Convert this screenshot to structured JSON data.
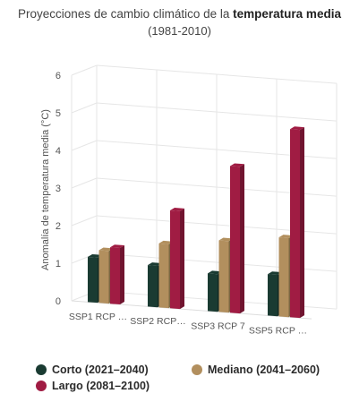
{
  "title_prefix": "Proyecciones de cambio climático de la ",
  "title_bold": "temperatura media",
  "subtitle": "(1981-2010)",
  "chart_data": {
    "type": "bar",
    "ylabel": "Anomalía de temperatura media (°C)",
    "ylim": [
      0,
      6
    ],
    "yticks": [
      "0",
      "1",
      "2",
      "3",
      "4",
      "5",
      "6"
    ],
    "categories": [
      "SSP1 RCP …",
      "SSP2 RCP…",
      "SSP3 RCP 7",
      "SSP5 RCP …"
    ],
    "series": [
      {
        "name": "Corto (2021–2040)",
        "color": "#1a3b32",
        "values": [
          1.2,
          1.1,
          1.0,
          1.1
        ]
      },
      {
        "name": "Mediano (2041–2060)",
        "color": "#b28f5e",
        "values": [
          1.4,
          1.7,
          1.9,
          2.1
        ]
      },
      {
        "name": "Largo (2081–2100)",
        "color": "#a01c43",
        "values": [
          1.5,
          2.6,
          3.9,
          5.0
        ]
      }
    ],
    "grid": true,
    "legend_position": "bottom"
  }
}
